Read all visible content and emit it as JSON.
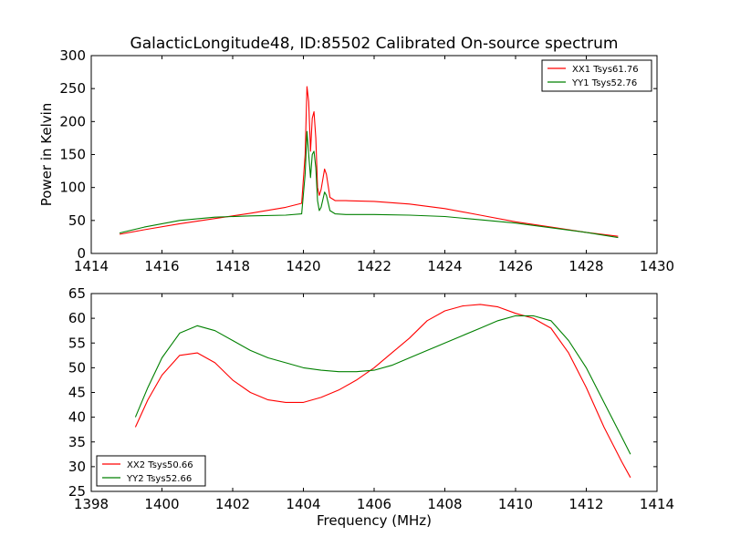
{
  "title": "GalacticLongitude48, ID:85502 Calibrated On-source spectrum",
  "colors": {
    "red": "#ff0000",
    "green": "#008000"
  },
  "chart_data": [
    {
      "type": "line",
      "ylabel": "Power in Kelvin",
      "xlabel": "",
      "xlim": [
        1414,
        1430
      ],
      "ylim": [
        0,
        300
      ],
      "xticks": [
        1414,
        1416,
        1418,
        1420,
        1422,
        1424,
        1426,
        1428,
        1430
      ],
      "yticks": [
        0,
        50,
        100,
        150,
        200,
        250,
        300
      ],
      "legend_position": "top-right",
      "series": [
        {
          "name": "XX1 Tsys61.76",
          "color": "#ff0000",
          "x": [
            1414.8,
            1415.5,
            1416.5,
            1417.5,
            1418.5,
            1419.5,
            1419.95,
            1420.05,
            1420.1,
            1420.15,
            1420.2,
            1420.25,
            1420.3,
            1420.35,
            1420.4,
            1420.45,
            1420.5,
            1420.6,
            1420.65,
            1420.75,
            1420.9,
            1421.2,
            1422,
            1423,
            1424,
            1425,
            1426,
            1427,
            1428,
            1428.9
          ],
          "y": [
            29,
            36,
            45,
            53,
            61,
            70,
            76,
            150,
            253,
            230,
            155,
            205,
            215,
            175,
            100,
            88,
            97,
            128,
            120,
            85,
            80,
            80,
            79,
            75,
            68,
            58,
            48,
            40,
            32,
            26
          ]
        },
        {
          "name": "YY1 Tsys52.76",
          "color": "#008000",
          "x": [
            1414.8,
            1415.5,
            1416.5,
            1417.5,
            1418.5,
            1419.5,
            1419.95,
            1420.05,
            1420.1,
            1420.15,
            1420.2,
            1420.25,
            1420.3,
            1420.35,
            1420.4,
            1420.45,
            1420.5,
            1420.6,
            1420.65,
            1420.75,
            1420.9,
            1421.2,
            1422,
            1423,
            1424,
            1425,
            1426,
            1427,
            1428,
            1428.9
          ],
          "y": [
            31,
            40,
            50,
            55,
            57,
            58,
            60,
            120,
            185,
            150,
            115,
            150,
            155,
            130,
            80,
            65,
            70,
            93,
            88,
            65,
            60,
            59,
            59,
            58,
            56,
            51,
            46,
            39,
            32,
            24
          ]
        }
      ]
    },
    {
      "type": "line",
      "ylabel": "",
      "xlabel": "Frequency (MHz)",
      "xlim": [
        1398,
        1414
      ],
      "ylim": [
        25,
        65
      ],
      "xticks": [
        1398,
        1400,
        1402,
        1404,
        1406,
        1408,
        1410,
        1412,
        1414
      ],
      "yticks": [
        25,
        30,
        35,
        40,
        45,
        50,
        55,
        60,
        65
      ],
      "legend_position": "bottom-left",
      "series": [
        {
          "name": "XX2 Tsys50.66",
          "color": "#ff0000",
          "x": [
            1399.25,
            1399.6,
            1400,
            1400.5,
            1401,
            1401.5,
            1402,
            1402.5,
            1403,
            1403.5,
            1404,
            1404.5,
            1405,
            1405.5,
            1406,
            1406.5,
            1407,
            1407.5,
            1408,
            1408.5,
            1409,
            1409.5,
            1410,
            1410.5,
            1411,
            1411.5,
            1412,
            1412.5,
            1413,
            1413.25
          ],
          "y": [
            38,
            43.5,
            48.5,
            52.5,
            53,
            51,
            47.5,
            45,
            43.5,
            43,
            43,
            44,
            45.5,
            47.5,
            50,
            53,
            56,
            59.5,
            61.5,
            62.5,
            62.8,
            62.3,
            61,
            60,
            58,
            53,
            46,
            38,
            31,
            27.8
          ]
        },
        {
          "name": "YY2 Tsys52.66",
          "color": "#008000",
          "x": [
            1399.25,
            1399.6,
            1400,
            1400.5,
            1401,
            1401.5,
            1402,
            1402.5,
            1403,
            1403.5,
            1404,
            1404.5,
            1405,
            1405.5,
            1406,
            1406.5,
            1407,
            1407.5,
            1408,
            1408.5,
            1409,
            1409.5,
            1410,
            1410.5,
            1411,
            1411.5,
            1412,
            1412.5,
            1413,
            1413.25
          ],
          "y": [
            40,
            46,
            52,
            57,
            58.5,
            57.5,
            55.5,
            53.5,
            52,
            51,
            50,
            49.5,
            49.2,
            49.2,
            49.5,
            50.5,
            52,
            53.5,
            55,
            56.5,
            58,
            59.5,
            60.5,
            60.5,
            59.5,
            55.5,
            50,
            43,
            36,
            32.5
          ]
        }
      ]
    }
  ]
}
